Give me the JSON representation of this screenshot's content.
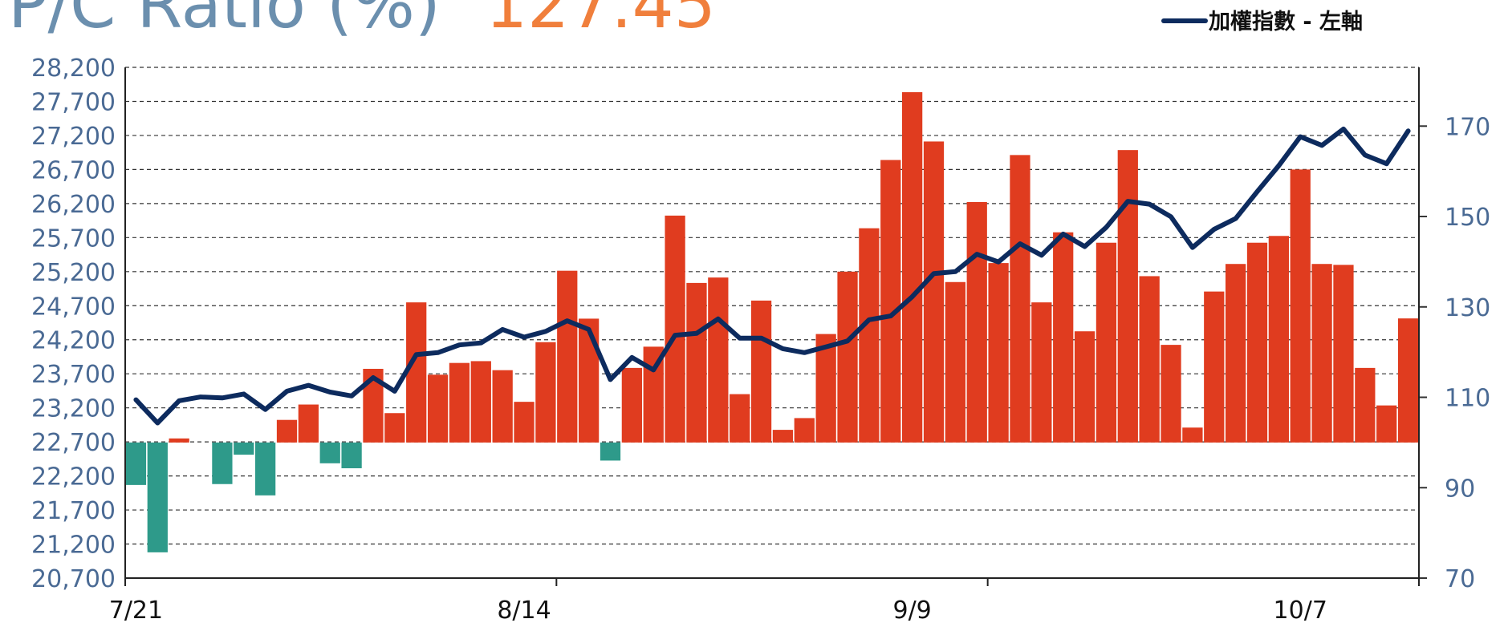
{
  "chart_data": {
    "type": "bar_line",
    "title": "P/C Ratio (%)",
    "categories": [
      "7/21",
      null,
      null,
      null,
      null,
      null,
      null,
      null,
      null,
      null,
      null,
      null,
      null,
      null,
      null,
      null,
      null,
      null,
      "8/14",
      null,
      null,
      null,
      null,
      null,
      null,
      null,
      null,
      null,
      null,
      null,
      null,
      null,
      null,
      null,
      null,
      null,
      "9/9",
      null,
      null,
      null,
      null,
      null,
      null,
      null,
      null,
      null,
      null,
      null,
      null,
      null,
      null,
      null,
      null,
      null,
      "10/7",
      null,
      null,
      null,
      null,
      null
    ],
    "series": [
      {
        "type": "bar",
        "axis": "y2",
        "color": "#e03c1f",
        "negative_color": "#2e9a8a",
        "baseline": 100,
        "values": [
          90.6,
          75.7,
          100.9,
          100,
          90.8,
          97.3,
          88.3,
          105,
          108.4,
          95.4,
          94.3,
          116.3,
          106.5,
          131,
          115,
          117.6,
          118,
          116,
          109,
          122.2,
          138,
          127.4,
          96,
          116.5,
          121.2,
          150.2,
          135.3,
          136.5,
          110.7,
          131.4,
          102.8,
          105.4,
          124,
          137.8,
          147.4,
          162.5,
          177.5,
          166.6,
          135.5,
          153.2,
          139.7,
          163.6,
          131,
          146.5,
          124.6,
          144.2,
          164.7,
          136.8,
          121.6,
          103.3,
          133.4,
          139.5,
          144.2,
          145.7,
          160.4,
          139.5,
          139.3,
          116.5,
          108.2,
          127.45
        ]
      },
      {
        "type": "line",
        "axis": "y",
        "name": "加權指數 - 左軸",
        "color": "#0d2b5e",
        "values": [
          23318,
          22978,
          23304,
          23360,
          23346,
          23403,
          23176,
          23445,
          23530,
          23431,
          23375,
          23643,
          23445,
          23983,
          24011,
          24124,
          24153,
          24351,
          24238,
          24323,
          24478,
          24351,
          23615,
          23940,
          23757,
          24266,
          24294,
          24507,
          24224,
          24224,
          24068,
          24011,
          24096,
          24181,
          24493,
          24549,
          24832,
          25172,
          25200,
          25455,
          25342,
          25610,
          25441,
          25752,
          25568,
          25851,
          26233,
          26191,
          26007,
          25554,
          25823,
          25979,
          26375,
          26757,
          27181,
          27054,
          27294,
          26912,
          26785,
          27266
        ]
      }
    ],
    "ylim": [
      20700,
      28200
    ],
    "yticks": [
      {
        "value": 20700,
        "label": "20,700"
      },
      {
        "value": 21200,
        "label": "21,200"
      },
      {
        "value": 21700,
        "label": "21,700"
      },
      {
        "value": 22200,
        "label": "22,200"
      },
      {
        "value": 22700,
        "label": "22,700"
      },
      {
        "value": 23200,
        "label": "23,200"
      },
      {
        "value": 23700,
        "label": "23,700"
      },
      {
        "value": 24200,
        "label": "24,200"
      },
      {
        "value": 24700,
        "label": "24,700"
      },
      {
        "value": 25200,
        "label": "25,200"
      },
      {
        "value": 25700,
        "label": "25,700"
      },
      {
        "value": 26200,
        "label": "26,200"
      },
      {
        "value": 26700,
        "label": "26,700"
      },
      {
        "value": 27200,
        "label": "27,200"
      },
      {
        "value": 27700,
        "label": "27,700"
      },
      {
        "value": 28200,
        "label": "28,200"
      }
    ],
    "y2lim": [
      70,
      183
    ],
    "y2ticks": [
      70,
      90,
      110,
      130,
      150,
      170
    ],
    "grid": true,
    "legend": "top-right"
  }
}
